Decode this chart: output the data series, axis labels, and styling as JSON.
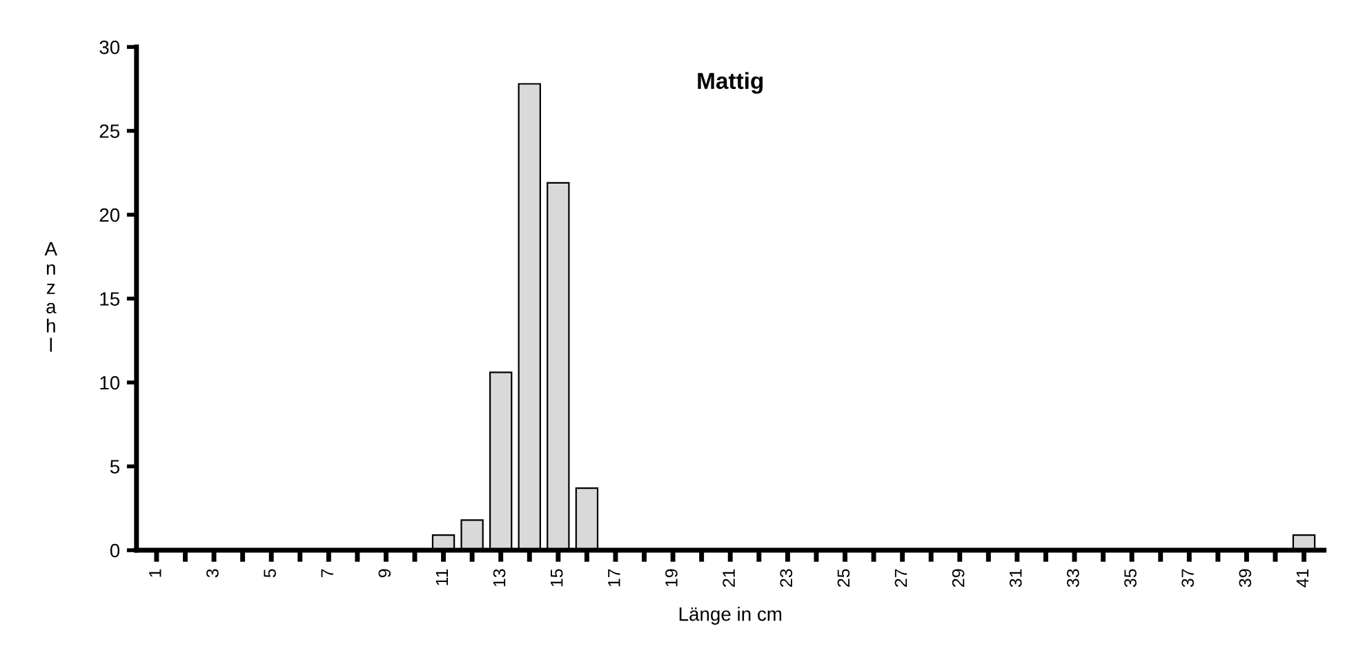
{
  "chart_data": {
    "type": "bar",
    "title": "Mattig",
    "xlabel": "Länge in cm",
    "ylabel": "Anzahl",
    "categories": [
      "1",
      null,
      "3",
      null,
      "5",
      null,
      "7",
      null,
      "9",
      null,
      "11",
      null,
      "13",
      null,
      "15",
      null,
      "17",
      null,
      "19",
      null,
      "21",
      null,
      "23",
      null,
      "25",
      null,
      "27",
      null,
      "29",
      null,
      "31",
      null,
      "33",
      null,
      "35",
      null,
      "37",
      null,
      "39",
      null,
      "41"
    ],
    "values": [
      0,
      0,
      0,
      0,
      0,
      0,
      0,
      0,
      0,
      0,
      0.9,
      1.8,
      10.6,
      27.8,
      21.9,
      3.7,
      0,
      0,
      0,
      0,
      0,
      0,
      0,
      0,
      0,
      0,
      0,
      0,
      0,
      0,
      0,
      0,
      0,
      0,
      0,
      0,
      0,
      0,
      0,
      0,
      0.9
    ],
    "color": "#d9d9d9",
    "ylim": [
      0,
      30
    ],
    "yticks": [
      0,
      5,
      10,
      15,
      20,
      25,
      30
    ],
    "grid": false,
    "legend": false
  }
}
